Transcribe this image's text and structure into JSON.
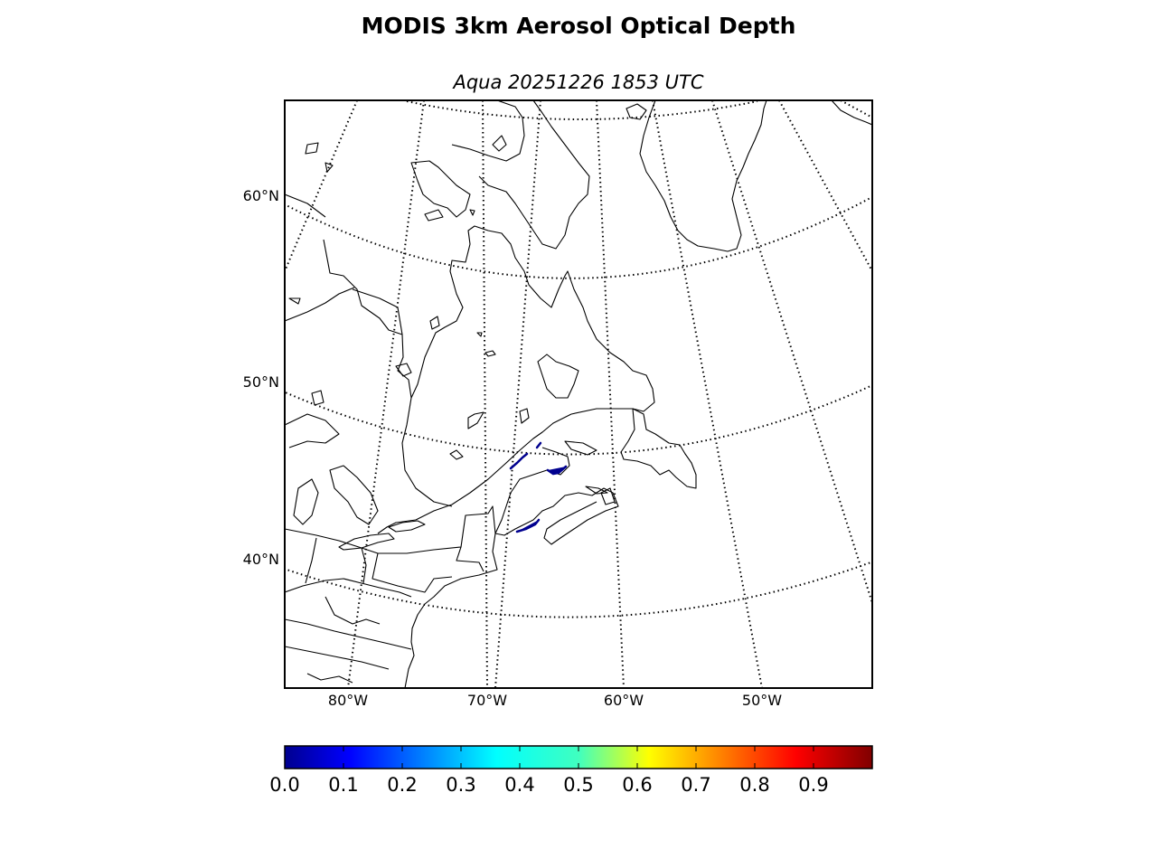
{
  "figure": {
    "title": "MODIS 3km Aerosol Optical Depth",
    "subtitle": "Aqua 20251226 1853 UTC"
  },
  "map": {
    "projection": "conic",
    "parallels": [
      {
        "lat": 60,
        "label": "60°N"
      },
      {
        "lat": 50,
        "label": "50°N"
      },
      {
        "lat": 40,
        "label": "40°N"
      }
    ],
    "meridians": [
      {
        "lon": -80,
        "label": "80°W"
      },
      {
        "lon": -70,
        "label": "70°W"
      },
      {
        "lon": -60,
        "label": "60°W"
      },
      {
        "lon": -50,
        "label": "50°W"
      }
    ],
    "coastline_color": "#000000",
    "aod_pixel_color": "#00008f"
  },
  "colorbar": {
    "min": 0.0,
    "max": 1.0,
    "colormap": "jet",
    "ticks": [
      "0.0",
      "0.1",
      "0.2",
      "0.3",
      "0.4",
      "0.5",
      "0.6",
      "0.7",
      "0.8",
      "0.9"
    ]
  }
}
